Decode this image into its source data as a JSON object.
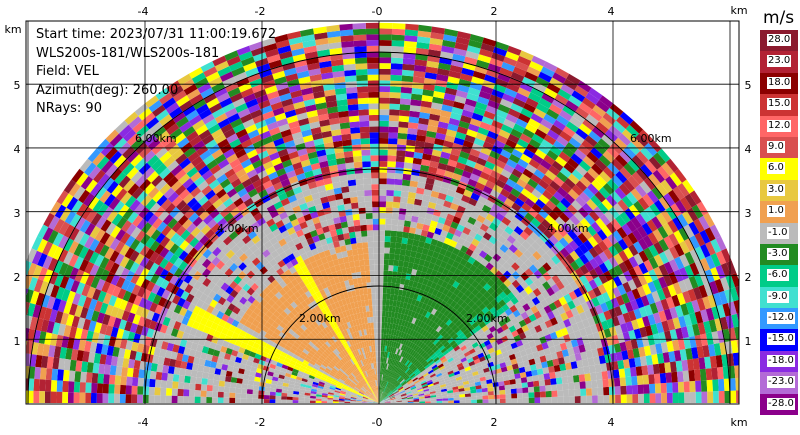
{
  "info": {
    "start_time": "Start time: 2023/07/31 11:00:19.672",
    "instrument": "WLS200s-181/WLS200s-181",
    "field": "Field: VEL",
    "azimuth": "Azimuth(deg): 260.00",
    "nrays": "NRays: 90"
  },
  "axes": {
    "unit": "km",
    "x_ticks": [
      "-4",
      "-2",
      "-0",
      "2",
      "4"
    ],
    "y_ticks": [
      "1",
      "2",
      "3",
      "4",
      "5"
    ],
    "range_ring_labels": [
      "2.00km",
      "4.00km",
      "6.00km"
    ]
  },
  "colorbar": {
    "unit": "m/s",
    "labels": [
      "28.0",
      "23.0",
      "18.0",
      "15.0",
      "12.0",
      "9.0",
      "6.0",
      "3.0",
      "1.0",
      "-1.0",
      "-3.0",
      "-6.0",
      "-9.0",
      "-12.0",
      "-15.0",
      "-18.0",
      "-23.0",
      "-28.0"
    ],
    "colors": [
      "#8b1a2e",
      "#b22234",
      "#8b0000",
      "#cc3333",
      "#ff6666",
      "#d94f4f",
      "#ffff00",
      "#e8c840",
      "#f0a050",
      "#bbbbbb",
      "#228b22",
      "#00cc88",
      "#40e0d0",
      "#3399ff",
      "#0000ff",
      "#8a2be2",
      "#b36bd6",
      "#8b008b"
    ]
  },
  "chart_data": {
    "type": "ppi-radar",
    "field": "VEL",
    "unit": "m/s",
    "xlim_km": [
      -6.0,
      6.0
    ],
    "ylim_km": [
      0,
      5.8
    ],
    "range_rings_km": [
      2.0,
      4.0,
      6.0
    ],
    "sweep_angle_deg": [
      0,
      180
    ]
  }
}
